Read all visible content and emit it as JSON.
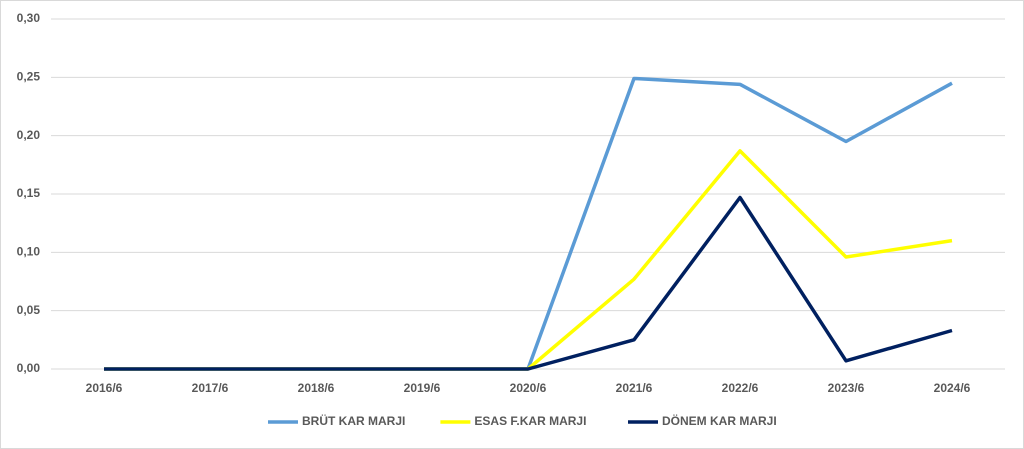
{
  "chart_data": {
    "type": "line",
    "categories": [
      "2016/6",
      "2017/6",
      "2018/6",
      "2019/6",
      "2020/6",
      "2021/6",
      "2022/6",
      "2023/6",
      "2024/6"
    ],
    "series": [
      {
        "name": "BRÜT KAR MARJI",
        "color": "#5b9bd5",
        "values": [
          0,
          0,
          0,
          0,
          0,
          0.249,
          0.244,
          0.195,
          0.245
        ]
      },
      {
        "name": "ESAS F.KAR MARJI",
        "color": "#ffff00",
        "values": [
          0,
          0,
          0,
          0,
          0,
          0.077,
          0.187,
          0.096,
          0.11
        ]
      },
      {
        "name": "DÖNEM KAR MARJI",
        "color": "#002060",
        "values": [
          0,
          0,
          0,
          0,
          0,
          0.025,
          0.147,
          0.007,
          0.033
        ]
      }
    ],
    "ylim": [
      0,
      0.3
    ],
    "yticks": [
      {
        "value": 0,
        "label": "0,00"
      },
      {
        "value": 0.05,
        "label": "0,05"
      },
      {
        "value": 0.1,
        "label": "0,10"
      },
      {
        "value": 0.15,
        "label": "0,15"
      },
      {
        "value": 0.2,
        "label": "0,20"
      },
      {
        "value": 0.25,
        "label": "0,25"
      },
      {
        "value": 0.3,
        "label": "0,30"
      }
    ],
    "grid": true,
    "legend": "bottom"
  }
}
